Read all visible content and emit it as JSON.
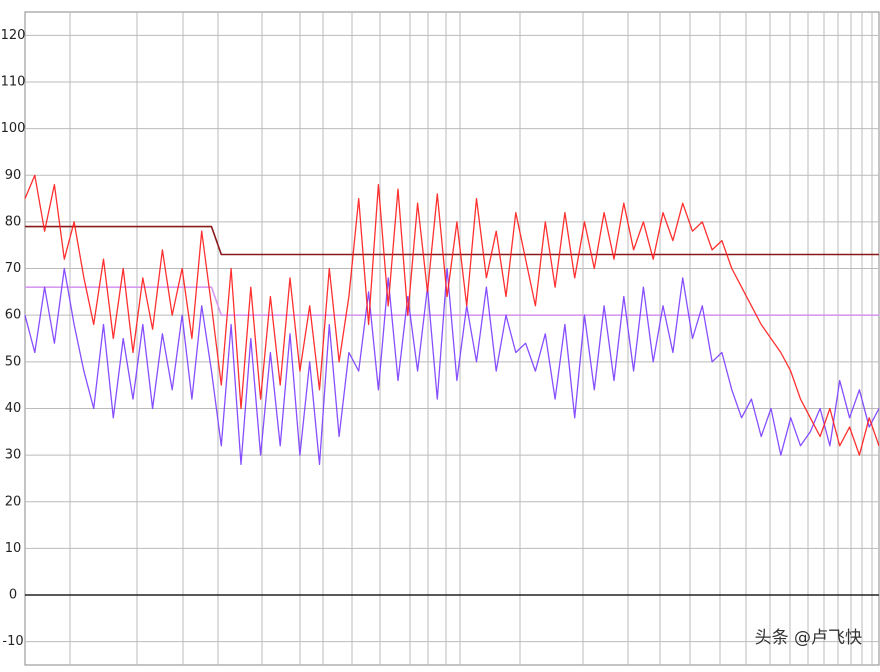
{
  "chart_data": {
    "type": "line",
    "categories": [
      null,
      null,
      null,
      null,
      null,
      null,
      null,
      null,
      null,
      null,
      null,
      null,
      null,
      null,
      null,
      null,
      null,
      null,
      null,
      null,
      null,
      null,
      null,
      null,
      null,
      null,
      null,
      null,
      null,
      null,
      null,
      null,
      null,
      null,
      null,
      null,
      null,
      null,
      null,
      null,
      null,
      null,
      null,
      null,
      null,
      null,
      null,
      null,
      null,
      null,
      null,
      null,
      null,
      null,
      null,
      null,
      null,
      null,
      null,
      null,
      null,
      null,
      null,
      null,
      null,
      null,
      null,
      null,
      null,
      null,
      null,
      null,
      null,
      null,
      null,
      null,
      null,
      null,
      null,
      null,
      null,
      null,
      null,
      null,
      null,
      null,
      null,
      null
    ],
    "series": [
      {
        "color": "#8a1a1a",
        "values": [
          79,
          79,
          79,
          79,
          79,
          79,
          79,
          79,
          79,
          79,
          79,
          79,
          79,
          79,
          79,
          79,
          79,
          79,
          79,
          79,
          73,
          73,
          73,
          73,
          73,
          73,
          73,
          73,
          73,
          73,
          73,
          73,
          73,
          73,
          73,
          73,
          73,
          73,
          73,
          73,
          73,
          73,
          73,
          73,
          73,
          73,
          73,
          73,
          73,
          73,
          73,
          73,
          73,
          73,
          73,
          73,
          73,
          73,
          73,
          73,
          73,
          73,
          73,
          73,
          73,
          73,
          73,
          73,
          73,
          73,
          73,
          73,
          73,
          73,
          73,
          73,
          73,
          73,
          73,
          73,
          73,
          73,
          73,
          73,
          73,
          73,
          73,
          73
        ]
      },
      {
        "color": "#d89af0",
        "values": [
          66,
          66,
          66,
          66,
          66,
          66,
          66,
          66,
          66,
          66,
          66,
          66,
          66,
          66,
          66,
          66,
          66,
          66,
          66,
          66,
          60,
          60,
          60,
          60,
          60,
          60,
          60,
          60,
          60,
          60,
          60,
          60,
          60,
          60,
          60,
          60,
          60,
          60,
          60,
          60,
          60,
          60,
          60,
          60,
          60,
          60,
          60,
          60,
          60,
          60,
          60,
          60,
          60,
          60,
          60,
          60,
          60,
          60,
          60,
          60,
          60,
          60,
          60,
          60,
          60,
          60,
          60,
          60,
          60,
          60,
          60,
          60,
          60,
          60,
          60,
          60,
          60,
          60,
          60,
          60,
          60,
          60,
          60,
          60,
          60,
          60,
          60,
          60
        ]
      },
      {
        "color": "#7a3cff",
        "values": [
          60,
          52,
          66,
          54,
          70,
          58,
          48,
          40,
          58,
          38,
          55,
          42,
          58,
          40,
          56,
          44,
          60,
          42,
          62,
          48,
          32,
          58,
          28,
          55,
          30,
          52,
          32,
          56,
          30,
          50,
          28,
          58,
          34,
          52,
          48,
          65,
          44,
          68,
          46,
          64,
          48,
          66,
          42,
          70,
          46,
          62,
          50,
          66,
          48,
          60,
          52,
          54,
          48,
          56,
          42,
          58,
          38,
          60,
          44,
          62,
          46,
          64,
          48,
          66,
          50,
          62,
          52,
          68,
          55,
          62,
          50,
          52,
          44,
          38,
          42,
          34,
          40,
          30,
          38,
          32,
          35,
          40,
          32,
          46,
          38,
          44,
          36,
          40
        ]
      },
      {
        "color": "#ff1a1a",
        "values": [
          85,
          90,
          78,
          88,
          72,
          80,
          68,
          58,
          72,
          55,
          70,
          52,
          68,
          57,
          74,
          60,
          70,
          55,
          78,
          62,
          45,
          70,
          40,
          66,
          42,
          64,
          45,
          68,
          48,
          62,
          44,
          70,
          50,
          64,
          85,
          58,
          88,
          62,
          87,
          60,
          84,
          65,
          86,
          64,
          80,
          62,
          85,
          68,
          78,
          64,
          82,
          72,
          62,
          80,
          66,
          82,
          68,
          80,
          70,
          82,
          72,
          84,
          74,
          80,
          72,
          82,
          76,
          84,
          78,
          80,
          74,
          76,
          70,
          66,
          62,
          58,
          55,
          52,
          48,
          42,
          38,
          34,
          40,
          32,
          36,
          30,
          38,
          32
        ]
      }
    ],
    "ylim": [
      -15,
      125
    ],
    "yticks": [
      -10,
      0,
      10,
      20,
      30,
      40,
      50,
      60,
      70,
      80,
      90,
      100,
      110,
      120
    ],
    "grid": true,
    "watermark": "头条 @卢飞快"
  }
}
